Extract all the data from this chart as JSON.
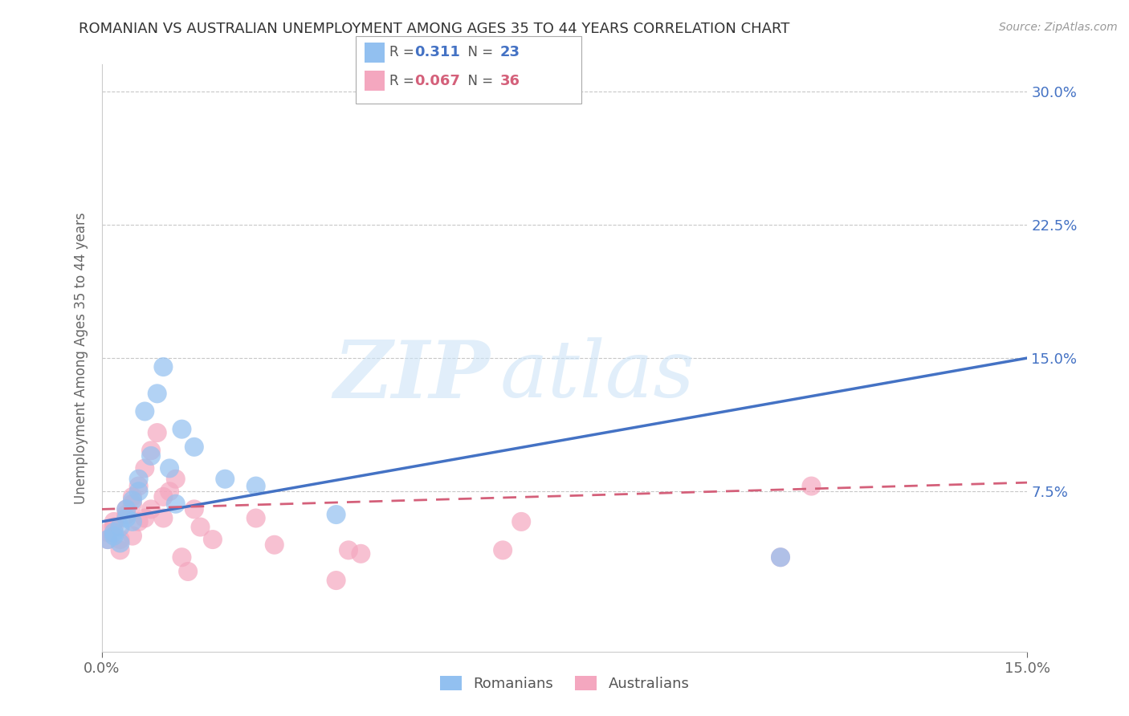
{
  "title": "ROMANIAN VS AUSTRALIAN UNEMPLOYMENT AMONG AGES 35 TO 44 YEARS CORRELATION CHART",
  "source": "Source: ZipAtlas.com",
  "ylabel_label": "Unemployment Among Ages 35 to 44 years",
  "right_yticks": [
    0.075,
    0.15,
    0.225,
    0.3
  ],
  "right_ytick_labels": [
    "7.5%",
    "15.0%",
    "22.5%",
    "30.0%"
  ],
  "xlim": [
    0.0,
    0.15
  ],
  "ylim": [
    -0.015,
    0.315
  ],
  "background_color": "#ffffff",
  "grid_color": "#c8c8c8",
  "romanian_color": "#92c0f0",
  "australian_color": "#f4a7bf",
  "romanian_line_color": "#4472c4",
  "australian_line_color": "#d4607a",
  "legend_R_romanian": "0.311",
  "legend_N_romanian": "23",
  "legend_R_australian": "0.067",
  "legend_N_australian": "36",
  "watermark_zip": "ZIP",
  "watermark_atlas": "atlas",
  "romanian_scatter_x": [
    0.001,
    0.002,
    0.002,
    0.003,
    0.003,
    0.004,
    0.004,
    0.005,
    0.005,
    0.006,
    0.006,
    0.007,
    0.008,
    0.009,
    0.01,
    0.011,
    0.012,
    0.013,
    0.015,
    0.02,
    0.025,
    0.038,
    0.11
  ],
  "romanian_scatter_y": [
    0.048,
    0.05,
    0.052,
    0.046,
    0.055,
    0.06,
    0.065,
    0.058,
    0.07,
    0.075,
    0.082,
    0.12,
    0.095,
    0.13,
    0.145,
    0.088,
    0.068,
    0.11,
    0.1,
    0.082,
    0.078,
    0.062,
    0.038
  ],
  "australian_scatter_x": [
    0.001,
    0.001,
    0.002,
    0.002,
    0.003,
    0.003,
    0.004,
    0.004,
    0.005,
    0.005,
    0.005,
    0.006,
    0.006,
    0.007,
    0.007,
    0.008,
    0.008,
    0.009,
    0.01,
    0.01,
    0.011,
    0.012,
    0.013,
    0.014,
    0.015,
    0.016,
    0.018,
    0.025,
    0.028,
    0.038,
    0.04,
    0.042,
    0.065,
    0.068,
    0.11,
    0.115
  ],
  "australian_scatter_y": [
    0.048,
    0.052,
    0.055,
    0.058,
    0.048,
    0.042,
    0.062,
    0.065,
    0.05,
    0.068,
    0.072,
    0.058,
    0.078,
    0.06,
    0.088,
    0.065,
    0.098,
    0.108,
    0.06,
    0.072,
    0.075,
    0.082,
    0.038,
    0.03,
    0.065,
    0.055,
    0.048,
    0.06,
    0.045,
    0.025,
    0.042,
    0.04,
    0.042,
    0.058,
    0.038,
    0.078
  ],
  "romanian_line_x": [
    0.0,
    0.15
  ],
  "romanian_line_y": [
    0.058,
    0.15
  ],
  "australian_line_x": [
    0.0,
    0.15
  ],
  "australian_line_y": [
    0.065,
    0.08
  ]
}
